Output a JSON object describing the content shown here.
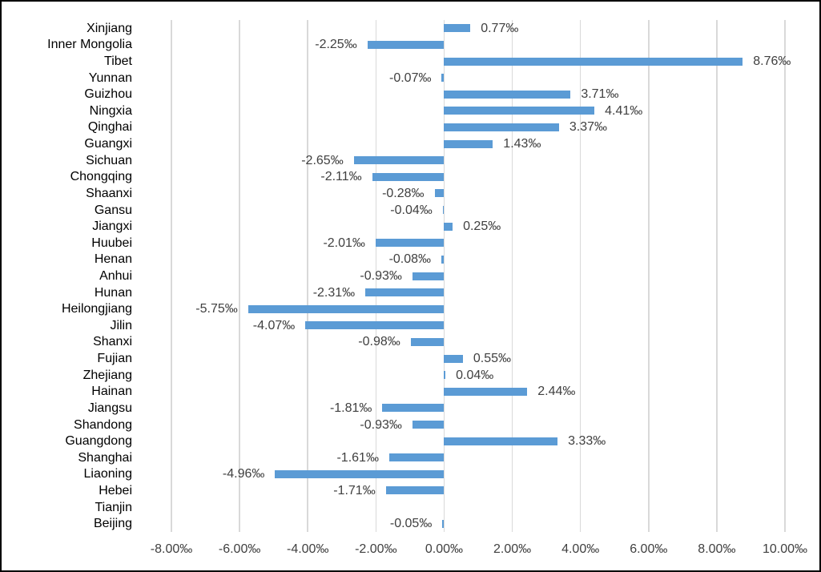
{
  "window": {
    "background_color": "#ffffff",
    "border_color": "#000000"
  },
  "chart_data": {
    "type": "bar",
    "orientation": "horizontal",
    "title": "",
    "unit": "‰",
    "legend": false,
    "grid": true,
    "categories": [
      "Xinjiang",
      "Inner Mongolia",
      "Tibet",
      "Yunnan",
      "Guizhou",
      "Ningxia",
      "Qinghai",
      "Guangxi",
      "Sichuan",
      "Chongqing",
      "Shaanxi",
      "Gansu",
      "Jiangxi",
      "Huubei",
      "Henan",
      "Anhui",
      "Hunan",
      "Heilongjiang",
      "Jilin",
      "Shanxi",
      "Fujian",
      "Zhejiang",
      "Hainan",
      "Jiangsu",
      "Shandong",
      "Guangdong",
      "Shanghai",
      "Liaoning",
      "Hebei",
      "Tianjin",
      "Beijing"
    ],
    "values": [
      0.77,
      -2.25,
      8.76,
      -0.07,
      3.71,
      4.41,
      3.37,
      1.43,
      -2.65,
      -2.11,
      -0.28,
      -0.04,
      0.25,
      -2.01,
      -0.08,
      -0.93,
      -2.31,
      -5.75,
      -4.07,
      -0.98,
      0.55,
      0.04,
      2.44,
      -1.81,
      -0.93,
      3.33,
      -1.61,
      -4.96,
      -1.71,
      0,
      -0.05
    ],
    "data_labels": [
      "0.77‰",
      "-2.25‰",
      "8.76‰",
      "-0.07‰",
      "3.71‰",
      "4.41‰",
      "3.37‰",
      "1.43‰",
      "-2.65‰",
      "-2.11‰",
      "-0.28‰",
      "-0.04‰",
      "0.25‰",
      "-2.01‰",
      "-0.08‰",
      "-0.93‰",
      "-2.31‰",
      "-5.75‰",
      "-4.07‰",
      "-0.98‰",
      "0.55‰",
      "0.04‰",
      "2.44‰",
      "-1.81‰",
      "-0.93‰",
      "3.33‰",
      "-1.61‰",
      "-4.96‰",
      "-1.71‰",
      "",
      "-0.05‰"
    ],
    "x_axis": {
      "min": -8,
      "max": 10,
      "tick_interval": 2,
      "tick_labels": [
        "-8.00‰",
        "-6.00‰",
        "-4.00‰",
        "-2.00‰",
        "0.00‰",
        "2.00‰",
        "4.00‰",
        "6.00‰",
        "8.00‰",
        "10.00‰"
      ]
    },
    "colors": {
      "bar": "#5b9bd5",
      "gridline": "#d9d9d9",
      "category_text": "#000000",
      "value_text": "#404040",
      "tick_text": "#404040"
    }
  }
}
